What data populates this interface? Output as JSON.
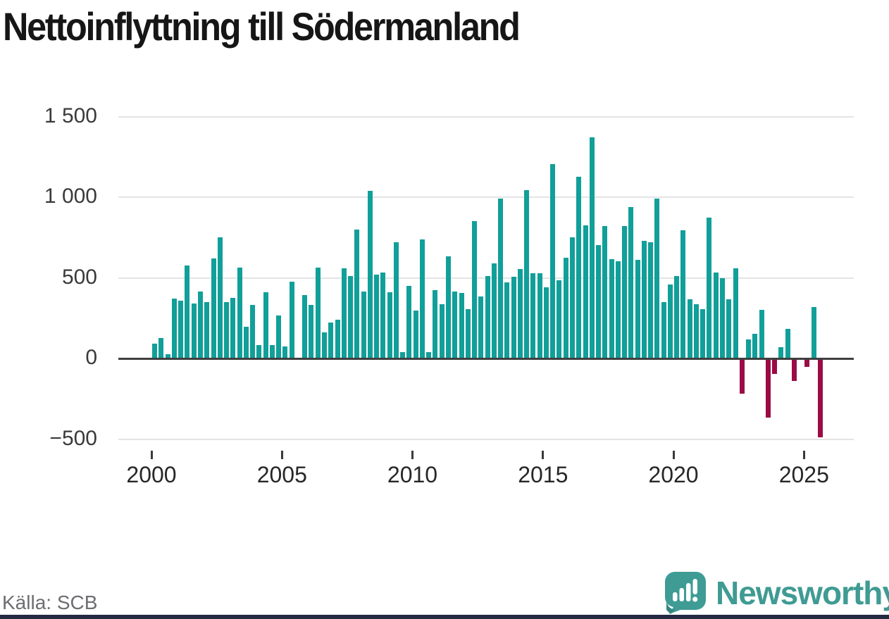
{
  "title": "Nettoinflyttning till Södermanland",
  "source": "Källa: SCB",
  "branding": {
    "logo_text": "Newsworthy",
    "logo_icon": "speech-bubble-bar-chart-exclamation-icon"
  },
  "colors": {
    "positive_bar": "#119f99",
    "negative_bar": "#9b0b46",
    "grid": "#e4e4e4",
    "zero_axis": "#3f3f3f",
    "brand_teal": "#3f9b93",
    "footer_strip": "#232a41"
  },
  "chart_data": {
    "type": "bar",
    "title": "Nettoinflyttning till Södermanland",
    "frequency": "quarterly",
    "start_period": "2000 Q1",
    "end_period": "2025 Q3",
    "x_tick_years": [
      2000,
      2005,
      2010,
      2015,
      2020,
      2025
    ],
    "x_tick_labels": [
      "2000",
      "2005",
      "2010",
      "2015",
      "2020",
      "2025"
    ],
    "y_tick_labels": [
      "1 500",
      "1 000",
      "500",
      "0",
      "−500"
    ],
    "y_tick_values": [
      1500,
      1000,
      500,
      0,
      -500
    ],
    "ylim": [
      -560,
      1560
    ],
    "grid": true,
    "legend": "none",
    "series": [
      {
        "name": "Nettoinflyttning",
        "values": [
          90,
          125,
          25,
          370,
          360,
          575,
          340,
          415,
          350,
          620,
          750,
          350,
          375,
          565,
          195,
          330,
          85,
          410,
          85,
          265,
          75,
          475,
          5,
          395,
          330,
          565,
          160,
          225,
          240,
          560,
          510,
          800,
          415,
          1040,
          520,
          535,
          410,
          720,
          40,
          450,
          295,
          740,
          40,
          425,
          335,
          635,
          415,
          405,
          305,
          850,
          385,
          510,
          590,
          990,
          470,
          505,
          555,
          1045,
          530,
          530,
          440,
          1205,
          485,
          625,
          750,
          1125,
          825,
          1370,
          705,
          820,
          615,
          605,
          820,
          940,
          610,
          730,
          720,
          990,
          350,
          460,
          510,
          795,
          365,
          335,
          305,
          875,
          535,
          500,
          365,
          560,
          -210,
          120,
          155,
          300,
          -360,
          -85,
          70,
          185,
          -130,
          0,
          -45,
          320,
          -480
        ]
      }
    ]
  }
}
